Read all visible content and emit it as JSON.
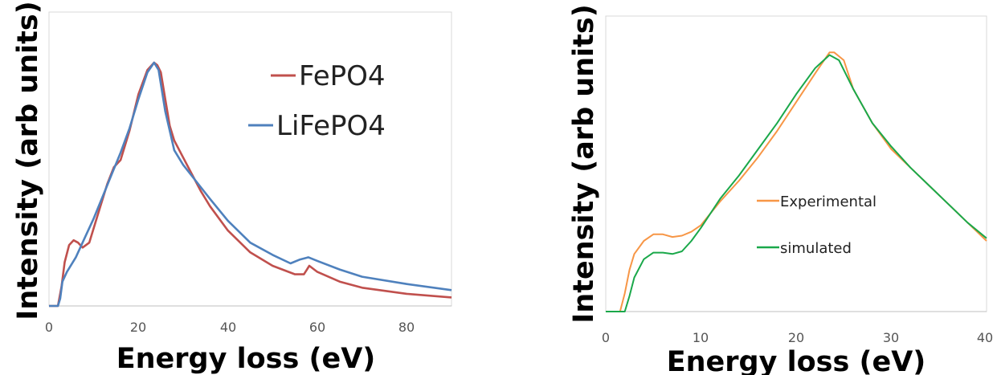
{
  "chart_data": [
    {
      "type": "line",
      "title": "",
      "xlabel": "Energy loss (eV)",
      "ylabel": "Intensity (arb units)",
      "xlim": [
        0,
        90
      ],
      "ylim": [
        0,
        1
      ],
      "y_ticks_shown": false,
      "x_ticks": [
        "0",
        "20",
        "40",
        "60",
        "80"
      ],
      "grid": false,
      "legend_position": "top-right",
      "series": [
        {
          "name": "FePO4",
          "color": "#c0504d",
          "x": [
            0,
            2,
            2.8,
            3.5,
            4.5,
            5.5,
            6.5,
            7.5,
            9,
            11,
            13,
            14.5,
            16,
            18,
            20,
            22,
            23.5,
            24.2,
            25,
            26,
            27,
            28,
            30,
            32,
            34,
            36,
            40,
            45,
            50,
            55,
            57,
            58.2,
            60,
            65,
            70,
            80,
            90
          ],
          "y": [
            0,
            0,
            0.08,
            0.18,
            0.25,
            0.27,
            0.26,
            0.24,
            0.26,
            0.38,
            0.5,
            0.57,
            0.6,
            0.72,
            0.87,
            0.97,
            1.0,
            0.99,
            0.96,
            0.85,
            0.74,
            0.68,
            0.61,
            0.54,
            0.47,
            0.41,
            0.31,
            0.22,
            0.165,
            0.13,
            0.13,
            0.165,
            0.14,
            0.1,
            0.075,
            0.05,
            0.035
          ]
        },
        {
          "name": "LiFePO4",
          "color": "#4f81bd",
          "x": [
            0,
            2,
            2.5,
            3,
            4,
            6,
            8,
            10,
            12,
            14,
            16,
            18,
            20,
            22,
            23.5,
            24.5,
            26,
            28,
            30,
            33,
            36,
            40,
            45,
            50,
            54,
            56,
            58,
            60,
            65,
            70,
            80,
            90
          ],
          "y": [
            0,
            0,
            0.03,
            0.1,
            0.14,
            0.2,
            0.28,
            0.36,
            0.45,
            0.54,
            0.63,
            0.73,
            0.85,
            0.96,
            1.0,
            0.97,
            0.8,
            0.64,
            0.58,
            0.51,
            0.44,
            0.35,
            0.26,
            0.21,
            0.175,
            0.19,
            0.2,
            0.185,
            0.15,
            0.12,
            0.09,
            0.065
          ]
        }
      ]
    },
    {
      "type": "line",
      "title": "",
      "xlabel": "Energy loss (eV)",
      "ylabel": "Intensity (arb units)",
      "xlim": [
        0,
        40
      ],
      "ylim": [
        0,
        1
      ],
      "y_ticks_shown": false,
      "x_ticks": [
        "0",
        "10",
        "20",
        "30",
        "40"
      ],
      "grid": false,
      "legend_position": "center",
      "series": [
        {
          "name": "Experimental",
          "color": "#f79646",
          "x": [
            0,
            1.5,
            2.0,
            2.5,
            3,
            4,
            5,
            6,
            7,
            8,
            9,
            10,
            12,
            14,
            16,
            18,
            20,
            22,
            23.5,
            24,
            25,
            26,
            28,
            30,
            32,
            34,
            36,
            38,
            40
          ],
          "y": [
            0,
            0,
            0.07,
            0.16,
            0.22,
            0.27,
            0.295,
            0.295,
            0.285,
            0.29,
            0.305,
            0.33,
            0.42,
            0.5,
            0.59,
            0.69,
            0.8,
            0.91,
            0.99,
            0.99,
            0.96,
            0.85,
            0.72,
            0.62,
            0.55,
            0.48,
            0.41,
            0.34,
            0.27
          ]
        },
        {
          "name": "simulated",
          "color": "#1aa84a",
          "x": [
            0,
            2,
            2.5,
            3,
            4,
            5,
            6,
            7,
            8,
            9,
            10,
            12,
            14,
            16,
            18,
            20,
            22,
            23.5,
            24.5,
            26,
            28,
            30,
            32,
            34,
            36,
            38,
            40
          ],
          "y": [
            0,
            0,
            0.06,
            0.13,
            0.2,
            0.225,
            0.225,
            0.22,
            0.23,
            0.27,
            0.32,
            0.43,
            0.52,
            0.62,
            0.72,
            0.83,
            0.93,
            0.98,
            0.96,
            0.85,
            0.72,
            0.63,
            0.55,
            0.48,
            0.41,
            0.34,
            0.28
          ]
        }
      ]
    }
  ]
}
